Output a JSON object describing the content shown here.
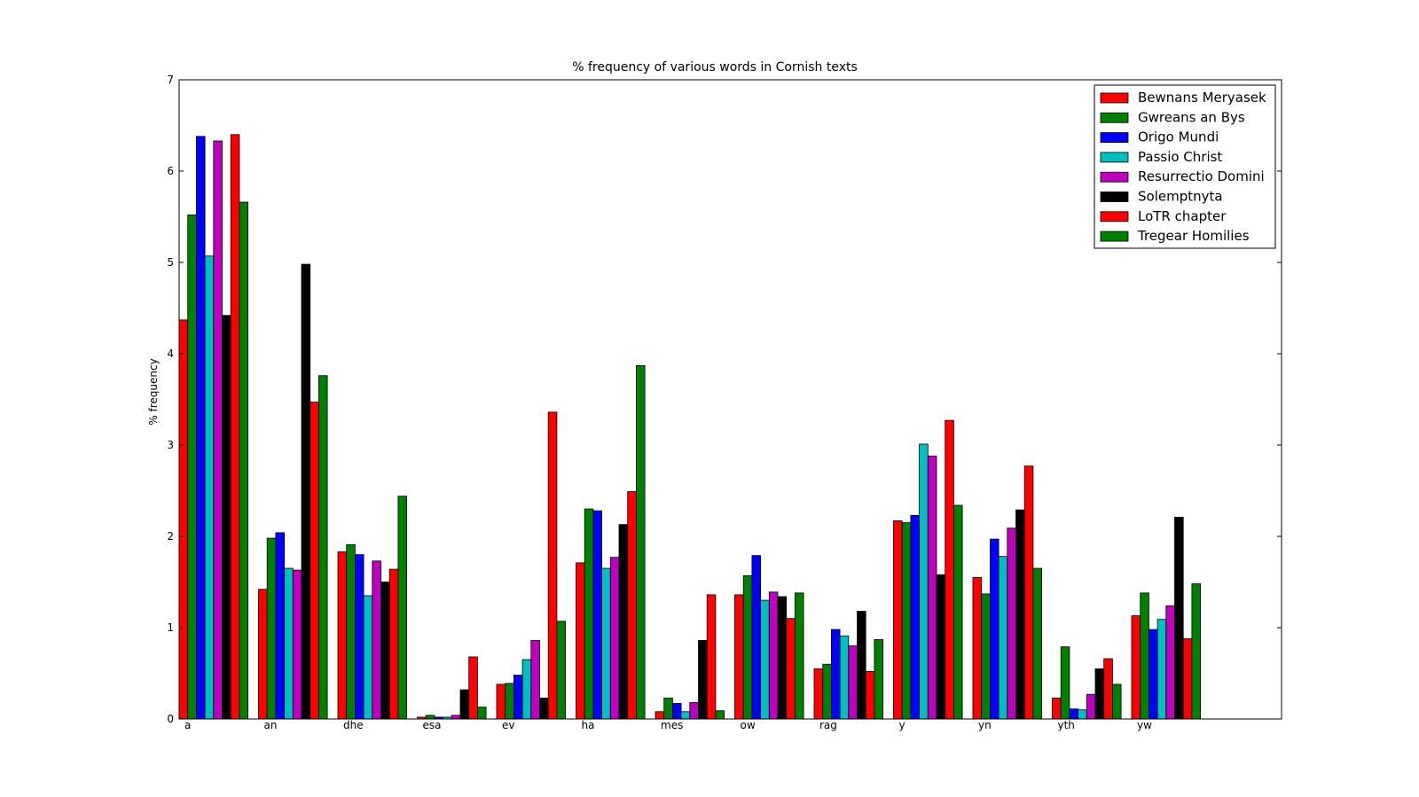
{
  "chart_data": {
    "type": "bar",
    "title": "% frequency of various words in Cornish texts",
    "xlabel": "",
    "ylabel": "% frequency",
    "ylim": [
      0,
      7
    ],
    "yticks": [
      "0",
      "1",
      "2",
      "3",
      "4",
      "5",
      "6",
      "7"
    ],
    "grid": false,
    "legend_position": "top-right",
    "categories": [
      "a",
      "an",
      "dhe",
      "esa",
      "ev",
      "ha",
      "mes",
      "ow",
      "rag",
      "y",
      "yn",
      "yth",
      "yw"
    ],
    "series": [
      {
        "name": "Bewnans Meryasek",
        "color": "#ff0000",
        "values": [
          4.37,
          1.42,
          1.83,
          0.02,
          0.38,
          1.71,
          0.08,
          1.36,
          0.55,
          2.17,
          1.55,
          0.23,
          1.13
        ]
      },
      {
        "name": "Gwreans an Bys",
        "color": "#008000",
        "values": [
          5.52,
          1.98,
          1.91,
          0.04,
          0.39,
          2.3,
          0.23,
          1.57,
          0.6,
          2.15,
          1.37,
          0.79,
          1.38
        ]
      },
      {
        "name": "Origo Mundi",
        "color": "#0000ff",
        "values": [
          6.38,
          2.04,
          1.8,
          0.02,
          0.48,
          2.28,
          0.17,
          1.79,
          0.98,
          2.23,
          1.97,
          0.11,
          0.98
        ]
      },
      {
        "name": "Passio Christ",
        "color": "#00bfbf",
        "values": [
          5.07,
          1.65,
          1.35,
          0.02,
          0.65,
          1.65,
          0.08,
          1.3,
          0.91,
          3.01,
          1.78,
          0.1,
          1.09
        ]
      },
      {
        "name": "Resurrectio Domini",
        "color": "#bf00bf",
        "values": [
          6.33,
          1.63,
          1.73,
          0.04,
          0.86,
          1.77,
          0.18,
          1.39,
          0.8,
          2.88,
          2.09,
          0.27,
          1.24
        ]
      },
      {
        "name": "Solemptnyta",
        "color": "#000000",
        "values": [
          4.42,
          4.98,
          1.5,
          0.32,
          0.23,
          2.13,
          0.86,
          1.34,
          1.18,
          1.58,
          2.29,
          0.55,
          2.21
        ]
      },
      {
        "name": "LoTR chapter",
        "color": "#ff0000",
        "values": [
          6.4,
          3.47,
          1.64,
          0.68,
          3.36,
          2.49,
          1.36,
          1.1,
          0.52,
          3.27,
          2.77,
          0.66,
          0.88
        ]
      },
      {
        "name": "Tregear Homilies",
        "color": "#008000",
        "values": [
          5.66,
          3.76,
          2.44,
          0.13,
          1.07,
          3.87,
          0.09,
          1.38,
          0.87,
          2.34,
          1.65,
          0.38,
          1.48
        ]
      }
    ]
  }
}
